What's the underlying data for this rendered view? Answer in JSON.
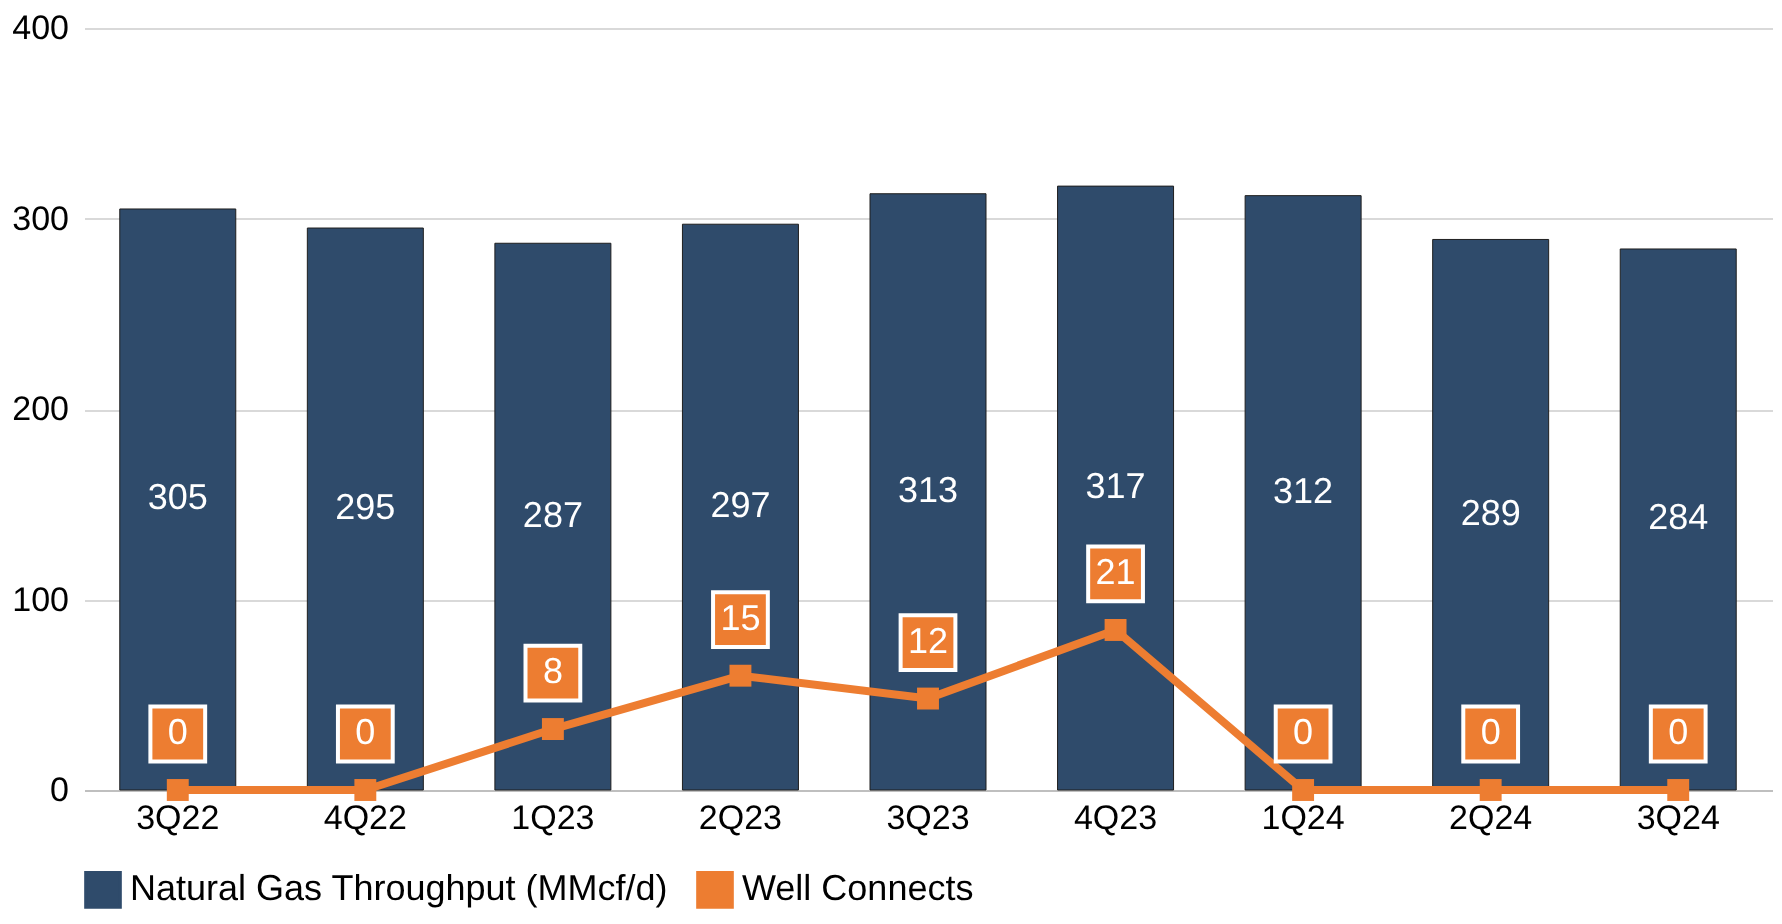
{
  "chart_data": {
    "type": "bar",
    "categories": [
      "3Q22",
      "4Q22",
      "1Q23",
      "2Q23",
      "3Q23",
      "4Q23",
      "1Q24",
      "2Q24",
      "3Q24"
    ],
    "series": [
      {
        "name": "Natural Gas Throughput (MMcf/d)",
        "color": "#2f4b6b",
        "values": [
          305,
          295,
          287,
          297,
          313,
          317,
          312,
          289,
          284
        ]
      },
      {
        "name": "Well Connects",
        "type": "line",
        "axis": "y2",
        "color": "#ed7d31",
        "marker": "square",
        "values": [
          0,
          0,
          8,
          15,
          12,
          21,
          0,
          0,
          0
        ]
      }
    ],
    "ylim": [
      0,
      400
    ],
    "yticks": [
      0,
      100,
      200,
      300,
      400
    ],
    "y2lim": [
      0,
      100
    ],
    "tick_labels": [
      "x",
      "y"
    ],
    "grid": "y",
    "legend": "bottom",
    "data_labels": true
  }
}
